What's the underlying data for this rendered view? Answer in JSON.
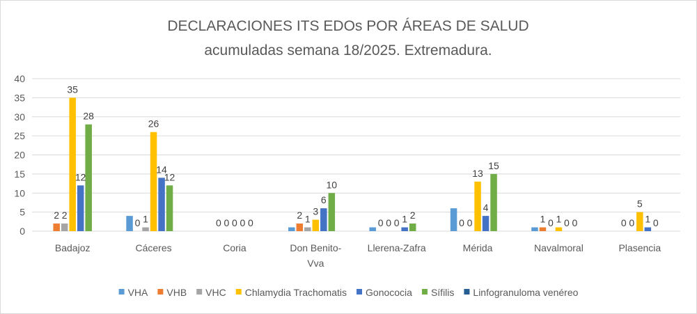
{
  "chart_data": {
    "type": "bar",
    "title": "DECLARACIONES ITS EDOs POR ÁREAS DE SALUD",
    "subtitle": "acumuladas semana 18/2025. Extremadura.",
    "xlabel": "",
    "ylabel": "",
    "ylim": [
      0,
      40
    ],
    "yticks": [
      0,
      5,
      10,
      15,
      20,
      25,
      30,
      35,
      40
    ],
    "grid": true,
    "legend": "bottom",
    "categories": [
      "Badajoz",
      "Cáceres",
      "Coria",
      "Don Benito-Vva",
      "Llerena-Zafra",
      "Mérida",
      "Navalmoral",
      "Plasencia"
    ],
    "category_lines": [
      [
        "Badajoz"
      ],
      [
        "Cáceres"
      ],
      [
        "Coria"
      ],
      [
        "Don Benito-",
        "Vva"
      ],
      [
        "Llerena-Zafra"
      ],
      [
        "Mérida"
      ],
      [
        "Navalmoral"
      ],
      [
        "Plasencia"
      ]
    ],
    "series": [
      {
        "name": "VHA",
        "color": "#5b9bd5",
        "values": [
          0,
          4,
          0,
          1,
          1,
          6,
          1,
          0
        ],
        "labels": [
          null,
          null,
          null,
          null,
          null,
          null,
          null,
          null
        ]
      },
      {
        "name": "VHB",
        "color": "#ed7d31",
        "values": [
          2,
          0,
          0,
          2,
          0,
          0,
          1,
          0
        ],
        "labels": [
          "2",
          "0",
          "0",
          "2",
          "0",
          "0",
          "1",
          "0"
        ]
      },
      {
        "name": "VHC",
        "color": "#a5a5a5",
        "values": [
          2,
          1,
          0,
          1,
          0,
          0,
          0,
          0
        ],
        "labels": [
          "2",
          "1",
          "0",
          "1",
          "0",
          "0",
          "0",
          "0"
        ]
      },
      {
        "name": "Chlamydia Trachomatis",
        "color": "#ffc000",
        "values": [
          35,
          26,
          0,
          3,
          0,
          13,
          1,
          5
        ],
        "labels": [
          "35",
          "26",
          "0",
          "3",
          "0",
          "13",
          "1",
          "5"
        ]
      },
      {
        "name": "Gonococia",
        "color": "#4472c4",
        "values": [
          12,
          14,
          0,
          6,
          1,
          4,
          0,
          1
        ],
        "labels": [
          "12",
          "14",
          "0",
          "6",
          "1",
          "4",
          "0",
          "1"
        ]
      },
      {
        "name": "Sífilis",
        "color": "#70ad47",
        "values": [
          28,
          12,
          0,
          10,
          2,
          15,
          0,
          0
        ],
        "labels": [
          "28",
          "12",
          "0",
          "10",
          "2",
          "15",
          "0",
          "0"
        ]
      },
      {
        "name": "Linfogranuloma venéreo",
        "color": "#255e91",
        "values": [
          0,
          0,
          0,
          0,
          0,
          0,
          0,
          0
        ],
        "labels": [
          null,
          null,
          null,
          null,
          null,
          null,
          null,
          null
        ]
      }
    ]
  }
}
